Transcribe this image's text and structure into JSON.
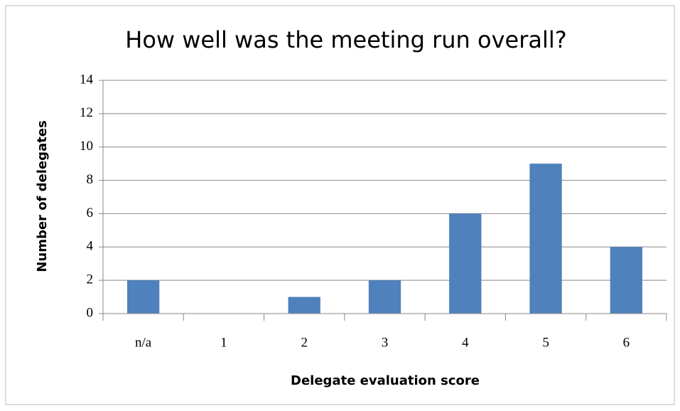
{
  "chart_data": {
    "type": "bar",
    "title": "How well was the meeting run overall?",
    "x_label": "Delegate evaluation score",
    "y_label": "Number of delegates",
    "categories": [
      "n/a",
      "1",
      "2",
      "3",
      "4",
      "5",
      "6"
    ],
    "values": [
      2,
      0,
      1,
      2,
      6,
      9,
      4
    ],
    "color": "#4f81bd",
    "ylim": [
      0,
      14
    ],
    "yticks": [
      0,
      2,
      4,
      6,
      8,
      10,
      12,
      14
    ],
    "grid": true
  }
}
